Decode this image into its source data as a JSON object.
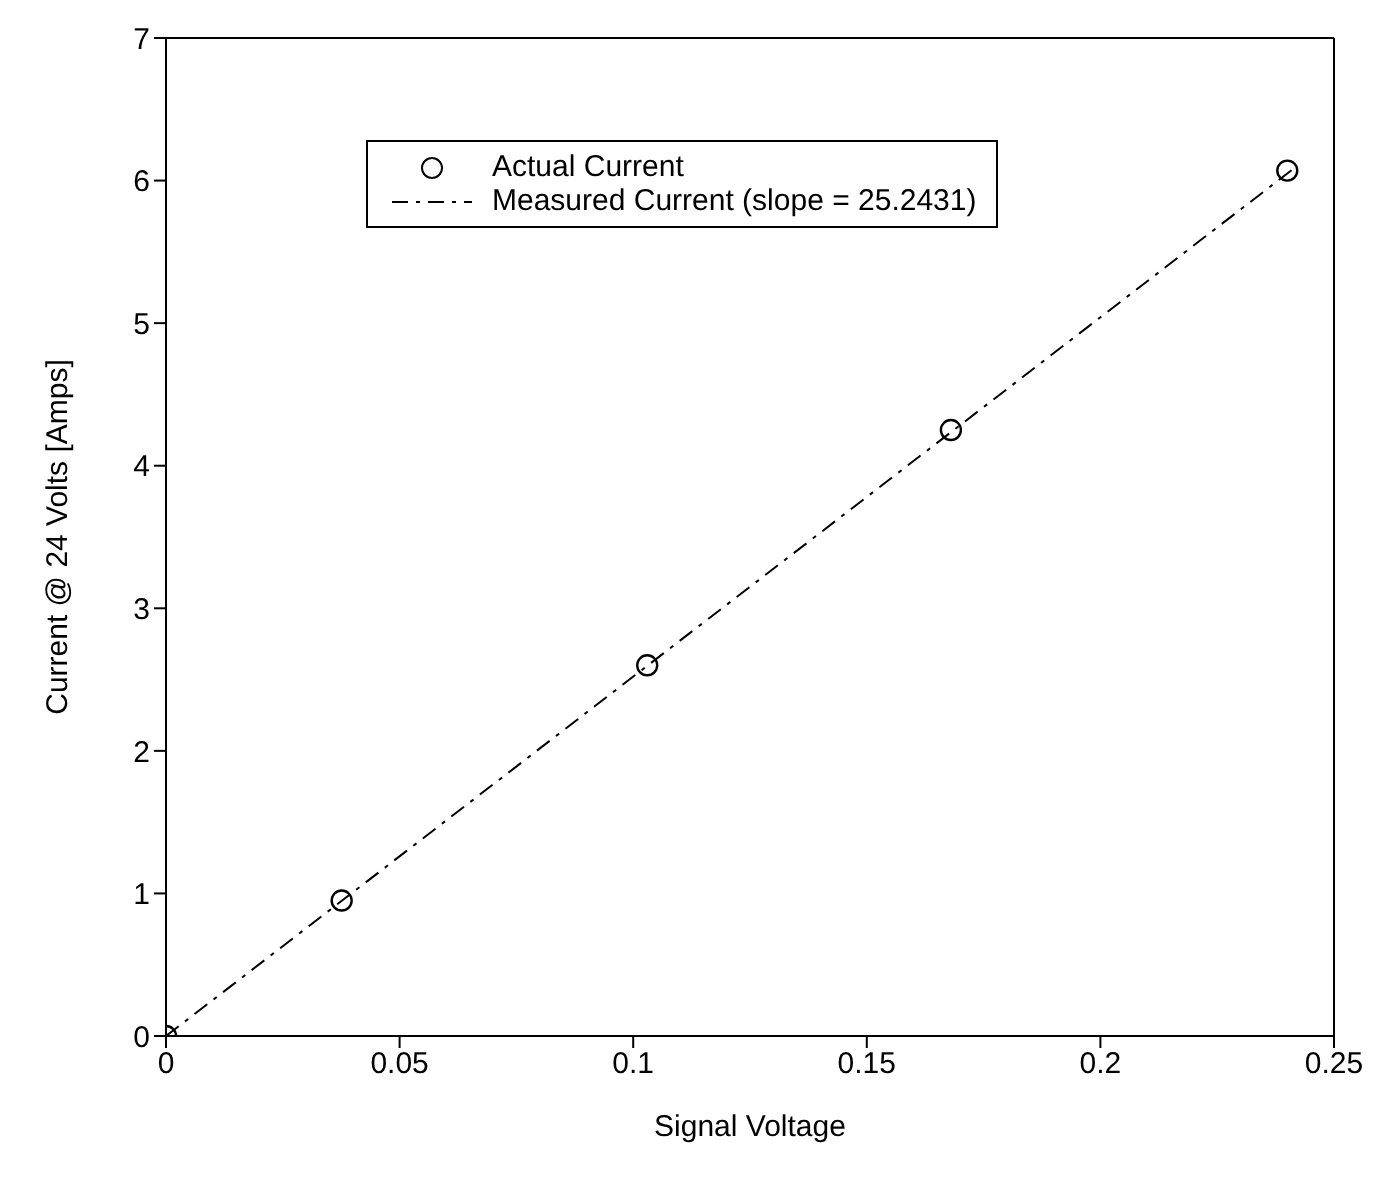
{
  "chart_data": {
    "type": "scatter",
    "xlabel": "Signal Voltage",
    "ylabel": "Current @ 24 Volts [Amps]",
    "xlim": [
      0,
      0.25
    ],
    "xticks": [
      0,
      0.05,
      0.1,
      0.15,
      0.2,
      0.25
    ],
    "ylim": [
      0,
      7
    ],
    "yticks": [
      0,
      1,
      2,
      3,
      4,
      5,
      6,
      7
    ],
    "grid": false,
    "legend": "top left",
    "series": [
      {
        "name": "Actual Current",
        "type": "scatter",
        "color": "#000000",
        "marker": "circle",
        "x": [
          0,
          0.0376,
          0.103,
          0.168,
          0.24
        ],
        "values": [
          0,
          0.95,
          2.6,
          4.25,
          6.07
        ]
      },
      {
        "name": "Measured Current (slope = 25.2431)",
        "type": "line",
        "color": "#000000",
        "marker": "none",
        "line_style": "dashed",
        "x": [
          0,
          0.242
        ],
        "values": [
          0,
          6.1
        ]
      }
    ]
  }
}
